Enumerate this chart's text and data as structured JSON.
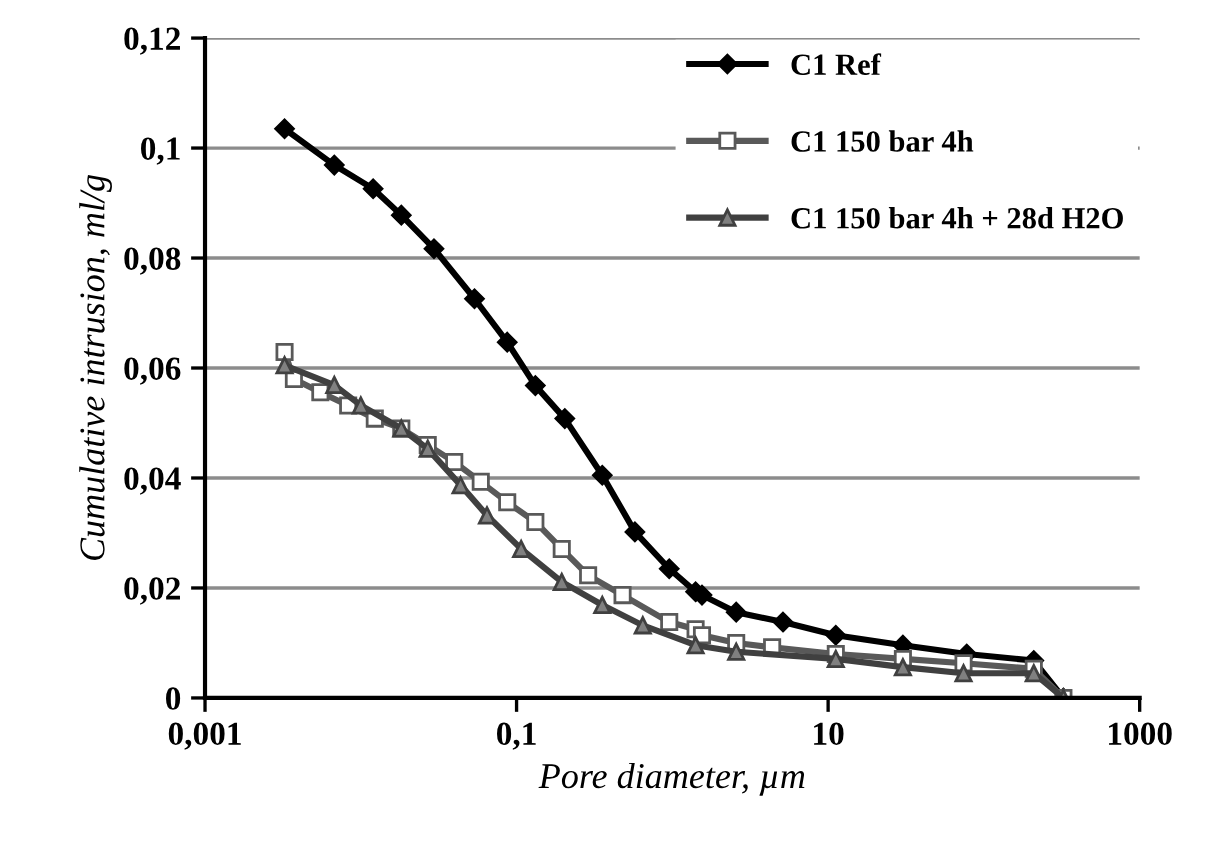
{
  "chart_data": {
    "type": "line",
    "xlabel": "Pore diameter, µm",
    "ylabel": "Cumulative intrusion, ml/g",
    "log": "x",
    "xlim": [
      0.001,
      1000
    ],
    "xticks": [
      {
        "value": 0.001,
        "label": "0,001"
      },
      {
        "value": 0.1,
        "label": "0,1"
      },
      {
        "value": 10,
        "label": "10"
      },
      {
        "value": 1000,
        "label": "1000"
      }
    ],
    "ylim": [
      0,
      0.12
    ],
    "yticks": [
      {
        "value": 0,
        "label": "0"
      },
      {
        "value": 0.02,
        "label": "0,02"
      },
      {
        "value": 0.04,
        "label": "0,04"
      },
      {
        "value": 0.06,
        "label": "0,06"
      },
      {
        "value": 0.08,
        "label": "0,08"
      },
      {
        "value": 0.1,
        "label": "0,1"
      },
      {
        "value": 0.12,
        "label": "0,12"
      }
    ],
    "grid": "y",
    "legend": "top right",
    "line_style": "solid",
    "series": [
      {
        "name": "C1 Ref",
        "color": "#000000",
        "marker": "diamond",
        "x": [
          0.00324,
          0.00676,
          0.012,
          0.0182,
          0.0295,
          0.0537,
          0.0871,
          0.132,
          0.204,
          0.355,
          0.575,
          0.955,
          1.41,
          1.55,
          2.57,
          5.13,
          11.2,
          30.2,
          77.6,
          209,
          324
        ],
        "values": [
          0.1035,
          0.0969,
          0.0926,
          0.0878,
          0.0817,
          0.0726,
          0.0647,
          0.0568,
          0.0508,
          0.0405,
          0.0302,
          0.0235,
          0.0193,
          0.0187,
          0.0156,
          0.0138,
          0.0114,
          0.0096,
          0.008,
          0.0068,
          0
        ]
      },
      {
        "name": "C1 150 bar 4h",
        "color": "#595959",
        "marker": "square",
        "x": [
          0.00324,
          0.00372,
          0.0055,
          0.0083,
          0.0123,
          0.0182,
          0.0269,
          0.0398,
          0.0589,
          0.0871,
          0.132,
          0.195,
          0.288,
          0.479,
          0.955,
          1.41,
          1.55,
          2.57,
          4.37,
          11.2,
          30.2,
          74,
          209,
          324
        ],
        "values": [
          0.0629,
          0.058,
          0.0556,
          0.0532,
          0.0508,
          0.049,
          0.046,
          0.0429,
          0.0393,
          0.0356,
          0.032,
          0.0271,
          0.0223,
          0.0187,
          0.0138,
          0.0125,
          0.0114,
          0.01,
          0.0092,
          0.008,
          0.0071,
          0.0063,
          0.0053,
          0
        ]
      },
      {
        "name": "C1 150 bar 4h + 28d H2O",
        "color": "#404040",
        "marker": "triangle",
        "x": [
          0.00324,
          0.00676,
          0.01,
          0.0182,
          0.0269,
          0.0437,
          0.0646,
          0.107,
          0.195,
          0.355,
          0.646,
          1.41,
          2.57,
          11.2,
          30.2,
          74,
          209,
          324
        ],
        "values": [
          0.0605,
          0.0569,
          0.0532,
          0.049,
          0.0453,
          0.0387,
          0.0332,
          0.0271,
          0.0211,
          0.0169,
          0.0132,
          0.0096,
          0.0084,
          0.0071,
          0.0056,
          0.0045,
          0.0045,
          0
        ]
      }
    ]
  }
}
